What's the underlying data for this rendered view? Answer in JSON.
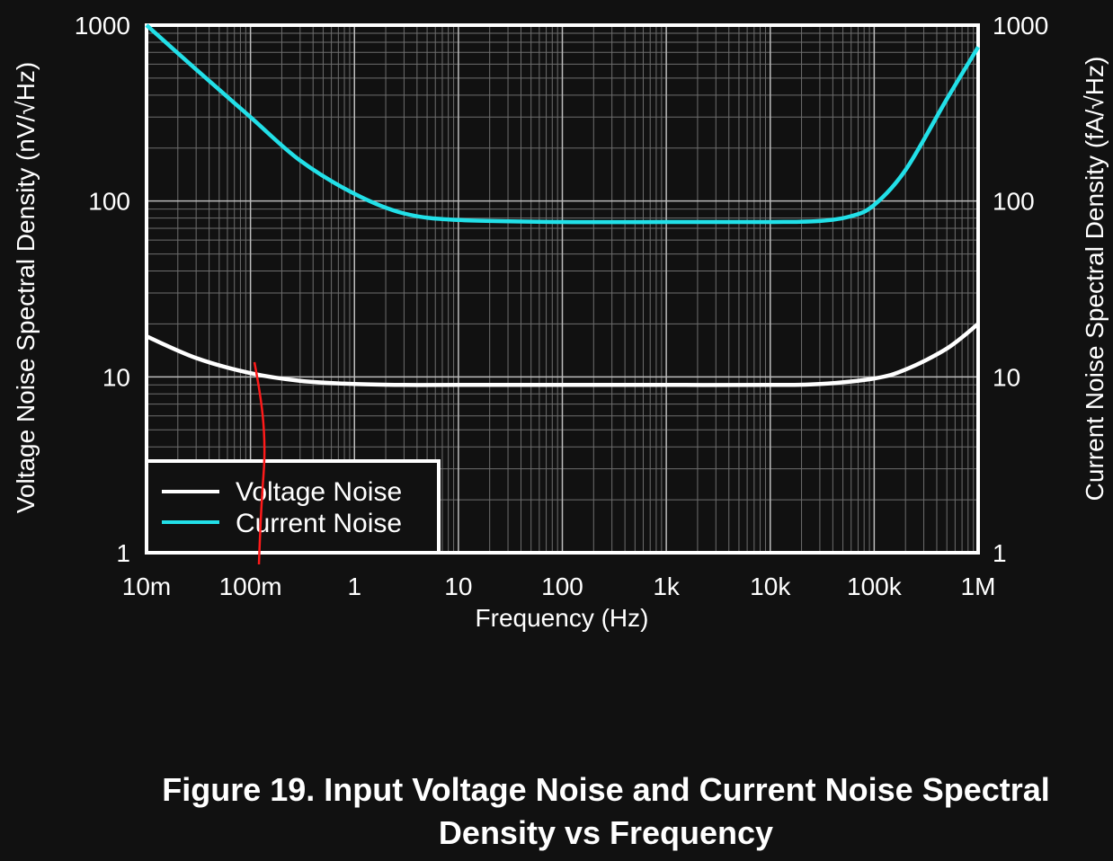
{
  "caption": {
    "line1": "Figure 19. Input Voltage Noise and Current Noise Spectral",
    "line2": "Density vs Frequency"
  },
  "chart_data": {
    "type": "line",
    "xscale": "log",
    "yscale": "log",
    "xlim": [
      0.01,
      1000000
    ],
    "ylim": [
      1,
      1000
    ],
    "y2lim": [
      1,
      1000
    ],
    "grid": true,
    "xlabel": "Frequency (Hz)",
    "ylabel": "Voltage Noise Spectral Density (nV/√Hz)",
    "y2label": "Current Noise Spectral Density (fA/√Hz)",
    "x_ticks": [
      0.01,
      0.1,
      1,
      10,
      100,
      1000,
      10000,
      100000,
      1000000
    ],
    "x_tick_labels": [
      "10m",
      "100m",
      "1",
      "10",
      "100",
      "1k",
      "10k",
      "100k",
      "1M"
    ],
    "y_ticks": [
      1,
      10,
      100,
      1000
    ],
    "y_tick_labels": [
      "1",
      "10",
      "100",
      "1000"
    ],
    "y2_tick_labels": [
      "1",
      "10",
      "100",
      "1000"
    ],
    "legend_position": "bottom-left",
    "series": [
      {
        "name": "Voltage Noise",
        "color": "#ffffff",
        "axis": "left",
        "x": [
          0.01,
          0.03,
          0.1,
          0.3,
          1,
          3,
          10,
          100,
          1000,
          10000,
          30000,
          100000,
          200000,
          500000,
          1000000
        ],
        "y": [
          17,
          12.8,
          10.5,
          9.5,
          9.1,
          9.0,
          9.0,
          9.0,
          9.0,
          9.0,
          9.1,
          9.8,
          11,
          14.5,
          20
        ]
      },
      {
        "name": "Current Noise",
        "color": "#22e0e8",
        "axis": "right",
        "x": [
          0.01,
          0.03,
          0.1,
          0.3,
          1,
          3,
          10,
          100,
          1000,
          10000,
          30000,
          60000,
          100000,
          200000,
          500000,
          1000000
        ],
        "y": [
          1000,
          560,
          300,
          170,
          110,
          85,
          78,
          76,
          76,
          76,
          77,
          82,
          95,
          150,
          380,
          750
        ]
      }
    ],
    "annotation_color": "#ff1a1a"
  }
}
